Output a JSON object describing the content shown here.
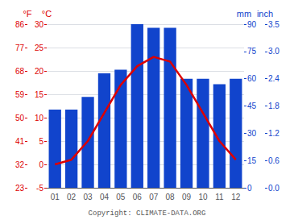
{
  "chart_data": {
    "type": "combo",
    "categories": [
      "01",
      "02",
      "03",
      "04",
      "05",
      "06",
      "07",
      "08",
      "09",
      "10",
      "11",
      "12"
    ],
    "series": [
      {
        "type": "bar",
        "color": "#1144cc",
        "axis": "y2",
        "values": [
          43,
          43,
          50,
          63,
          65,
          90,
          88,
          88,
          60,
          60,
          57,
          60
        ]
      },
      {
        "type": "line",
        "color": "#dd0000",
        "values": [
          0,
          1,
          5,
          11,
          17,
          21,
          23,
          22,
          17,
          11,
          5,
          1
        ]
      }
    ],
    "ylabel": "°C",
    "ylim": [
      -5,
      30
    ],
    "yticks": [
      -5,
      0,
      5,
      10,
      15,
      20,
      25,
      30
    ],
    "y3label": "°F",
    "y3ticks": [
      {
        "value": -5,
        "label": "23"
      },
      {
        "value": 0,
        "label": "32"
      },
      {
        "value": 5,
        "label": "41"
      },
      {
        "value": 10,
        "label": "50"
      },
      {
        "value": 15,
        "label": "59"
      },
      {
        "value": 20,
        "label": "68"
      },
      {
        "value": 25,
        "label": "77"
      },
      {
        "value": 30,
        "label": "86"
      }
    ],
    "y2label": "mm",
    "y2lim": [
      0,
      90
    ],
    "y2ticks": [
      0,
      15,
      30,
      45,
      60,
      75,
      90
    ],
    "y4label": "inch",
    "y4ticks": [
      {
        "value": 0,
        "label": "0.0"
      },
      {
        "value": 15,
        "label": "0.6"
      },
      {
        "value": 30,
        "label": "1.2"
      },
      {
        "value": 45,
        "label": "1.8"
      },
      {
        "value": 60,
        "label": "2.4"
      },
      {
        "value": 75,
        "label": "3.0"
      },
      {
        "value": 90,
        "label": "3.5"
      }
    ],
    "annotation": "Copyright: CLIMATE-DATA.ORG",
    "grid": true
  }
}
